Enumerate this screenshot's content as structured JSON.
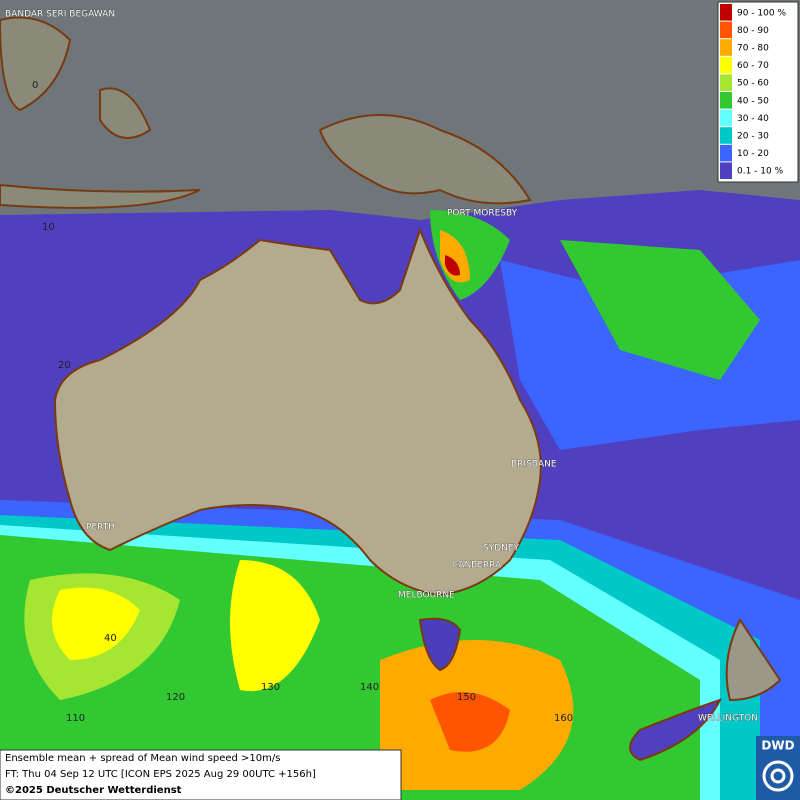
{
  "places": [
    "BANDAR SERI BEGAWAN",
    "PORT MORESBY",
    "BRISBANE",
    "PERTH",
    "SYDNEY",
    "CANBERRA",
    "MELBOURNE",
    "WELLINGTON"
  ],
  "grid_labels": [
    "0",
    "10",
    "20",
    "40",
    "110",
    "120",
    "130",
    "140",
    "150",
    "160"
  ],
  "legend": {
    "items": [
      {
        "label": "90 - 100 %",
        "color": "#c00000"
      },
      {
        "label": "80 - 90",
        "color": "#ff5500"
      },
      {
        "label": "70 - 80",
        "color": "#ffaa00"
      },
      {
        "label": "60 - 70",
        "color": "#ffff00"
      },
      {
        "label": "50 - 60",
        "color": "#a5e632"
      },
      {
        "label": "40 - 50",
        "color": "#32c832"
      },
      {
        "label": "30 - 40",
        "color": "#64ffff"
      },
      {
        "label": "20 - 30",
        "color": "#00c8c8"
      },
      {
        "label": "10 - 20",
        "color": "#3c64ff"
      },
      {
        "label": "0.1 - 10 %",
        "color": "#5040c0"
      }
    ]
  },
  "caption": {
    "lines": [
      "Ensemble mean + spread of Mean wind speed >10m/s",
      "FT: Thu 04 Sep 12 UTC [ICON EPS 2025 Aug 29 00UTC +156h]"
    ],
    "copyright": "©2025 Deutscher Wetterdienst"
  },
  "logo": "DWD"
}
